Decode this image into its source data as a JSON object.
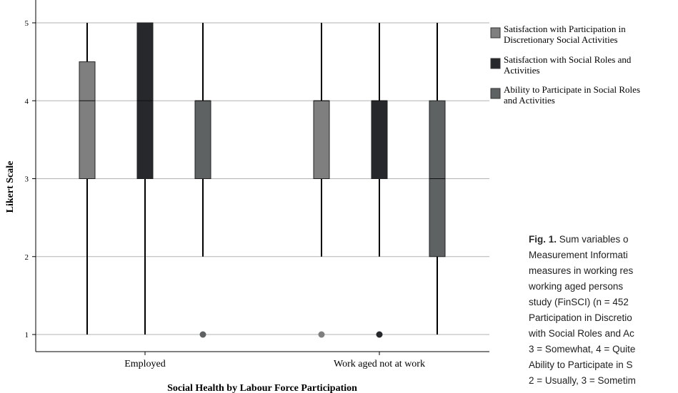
{
  "chart_data": {
    "type": "box",
    "xlabel": "Social Health by Labour Force Participation",
    "ylabel": "Likert Scale",
    "ylim": [
      1,
      5
    ],
    "yticks": [
      1,
      2,
      3,
      4,
      5
    ],
    "categories": [
      "Employed",
      "Work aged not at work"
    ],
    "legend_position": "right",
    "series": [
      {
        "name": "Satisfaction with Participation in Discretionary Social Activities",
        "legend_lines": [
          "Satisfaction with Participation in",
          "Discretionary Social Activities"
        ],
        "color": "#7f7f7f",
        "boxes": [
          {
            "min": 1,
            "q1": 3,
            "median": 4,
            "q3": 4.5,
            "max": 5,
            "outliers": []
          },
          {
            "min": 2,
            "q1": 3,
            "median": 4,
            "q3": 4,
            "max": 5,
            "outliers": [
              1
            ]
          }
        ]
      },
      {
        "name": "Satisfaction with Social Roles and Activities",
        "legend_lines": [
          "Satisfaction with Social Roles and",
          "Activities"
        ],
        "color": "#26282b",
        "boxes": [
          {
            "min": 1,
            "q1": 3,
            "median": 4,
            "q3": 5,
            "max": 5,
            "outliers": []
          },
          {
            "min": 2,
            "q1": 3,
            "median": 4,
            "q3": 4,
            "max": 5,
            "outliers": [
              1
            ]
          }
        ]
      },
      {
        "name": "Ability to Participate in Social Roles and Activities",
        "legend_lines": [
          "Ability to Participate in Social Roles",
          "and Activities"
        ],
        "color": "#5e6262",
        "boxes": [
          {
            "min": 2,
            "q1": 3,
            "median": 4,
            "q3": 4,
            "max": 5,
            "outliers": [
              1
            ]
          },
          {
            "min": 1,
            "q1": 2,
            "median": 3,
            "q3": 4,
            "max": 5,
            "outliers": []
          }
        ]
      }
    ]
  },
  "caption": {
    "fig_label": "Fig. 1.",
    "lines": [
      " Sum variables o",
      "Measurement Informati",
      "measures in working res",
      "working aged persons",
      "study (FinSCI) (n = 452",
      "Participation in Discretio",
      "with Social Roles and Ac",
      "3 = Somewhat, 4 = Quite",
      "Ability to Participate in S",
      "2 = Usually, 3 = Sometim"
    ]
  }
}
